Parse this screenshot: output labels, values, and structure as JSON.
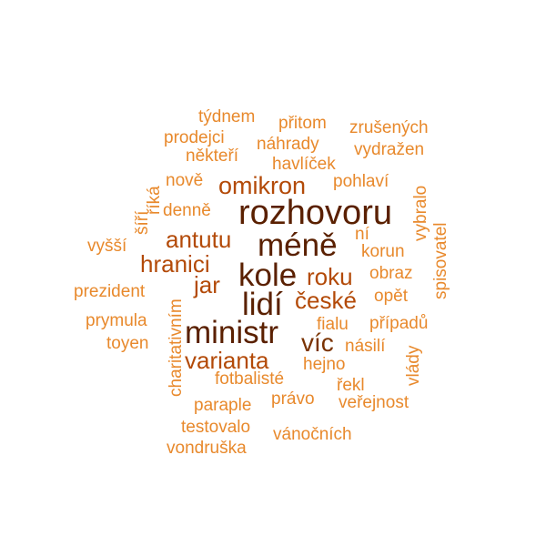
{
  "palette": {
    "dark": "#5a2000",
    "darkmid": "#7a3302",
    "mid": "#b34a08",
    "light": "#e8892c",
    "pale": "#f2a251"
  },
  "words": [
    {
      "text": "rozhovoru",
      "tone": "dark",
      "weight": 10
    },
    {
      "text": "méně",
      "tone": "dark",
      "weight": 10
    },
    {
      "text": "kole",
      "tone": "dark",
      "weight": 10
    },
    {
      "text": "lidí",
      "tone": "dark",
      "weight": 10
    },
    {
      "text": "ministr",
      "tone": "dark",
      "weight": 10
    },
    {
      "text": "omikron",
      "tone": "mid",
      "weight": 7
    },
    {
      "text": "antutu",
      "tone": "mid",
      "weight": 7
    },
    {
      "text": "hranici",
      "tone": "mid",
      "weight": 7
    },
    {
      "text": "jar",
      "tone": "mid",
      "weight": 7
    },
    {
      "text": "roku",
      "tone": "mid",
      "weight": 7
    },
    {
      "text": "české",
      "tone": "mid",
      "weight": 7
    },
    {
      "text": "víc",
      "tone": "darkmid",
      "weight": 7
    },
    {
      "text": "varianta",
      "tone": "mid",
      "weight": 7
    },
    {
      "text": "týdnem",
      "tone": "light",
      "weight": 3
    },
    {
      "text": "přitom",
      "tone": "light",
      "weight": 3
    },
    {
      "text": "zrušených",
      "tone": "light",
      "weight": 3
    },
    {
      "text": "prodejci",
      "tone": "light",
      "weight": 3
    },
    {
      "text": "náhrady",
      "tone": "light",
      "weight": 3
    },
    {
      "text": "vydražen",
      "tone": "light",
      "weight": 3
    },
    {
      "text": "někteří",
      "tone": "light",
      "weight": 3
    },
    {
      "text": "havlíček",
      "tone": "light",
      "weight": 3
    },
    {
      "text": "nově",
      "tone": "light",
      "weight": 3
    },
    {
      "text": "pohlaví",
      "tone": "light",
      "weight": 3
    },
    {
      "text": "vybralo",
      "tone": "light",
      "weight": 3
    },
    {
      "text": "říká",
      "tone": "light",
      "weight": 3
    },
    {
      "text": "denně",
      "tone": "light",
      "weight": 3
    },
    {
      "text": "šíří",
      "tone": "light",
      "weight": 3
    },
    {
      "text": "ní",
      "tone": "light",
      "weight": 3
    },
    {
      "text": "spisovatel",
      "tone": "light",
      "weight": 3
    },
    {
      "text": "vyšší",
      "tone": "light",
      "weight": 3
    },
    {
      "text": "korun",
      "tone": "light",
      "weight": 3
    },
    {
      "text": "obraz",
      "tone": "light",
      "weight": 3
    },
    {
      "text": "prezident",
      "tone": "light",
      "weight": 3
    },
    {
      "text": "opět",
      "tone": "light",
      "weight": 3
    },
    {
      "text": "charitativním",
      "tone": "light",
      "weight": 3
    },
    {
      "text": "prymula",
      "tone": "light",
      "weight": 3
    },
    {
      "text": "fialu",
      "tone": "light",
      "weight": 3
    },
    {
      "text": "případů",
      "tone": "light",
      "weight": 3
    },
    {
      "text": "toyen",
      "tone": "light",
      "weight": 3
    },
    {
      "text": "násilí",
      "tone": "light",
      "weight": 3
    },
    {
      "text": "vlády",
      "tone": "light",
      "weight": 3
    },
    {
      "text": "hejno",
      "tone": "light",
      "weight": 3
    },
    {
      "text": "fotbalisté",
      "tone": "light",
      "weight": 3
    },
    {
      "text": "řekl",
      "tone": "light",
      "weight": 3
    },
    {
      "text": "právo",
      "tone": "light",
      "weight": 3
    },
    {
      "text": "veřejnost",
      "tone": "light",
      "weight": 3
    },
    {
      "text": "paraple",
      "tone": "light",
      "weight": 3
    },
    {
      "text": "testovalo",
      "tone": "light",
      "weight": 3
    },
    {
      "text": "vánočních",
      "tone": "light",
      "weight": 3
    },
    {
      "text": "vondruška",
      "tone": "light",
      "weight": 3
    }
  ]
}
